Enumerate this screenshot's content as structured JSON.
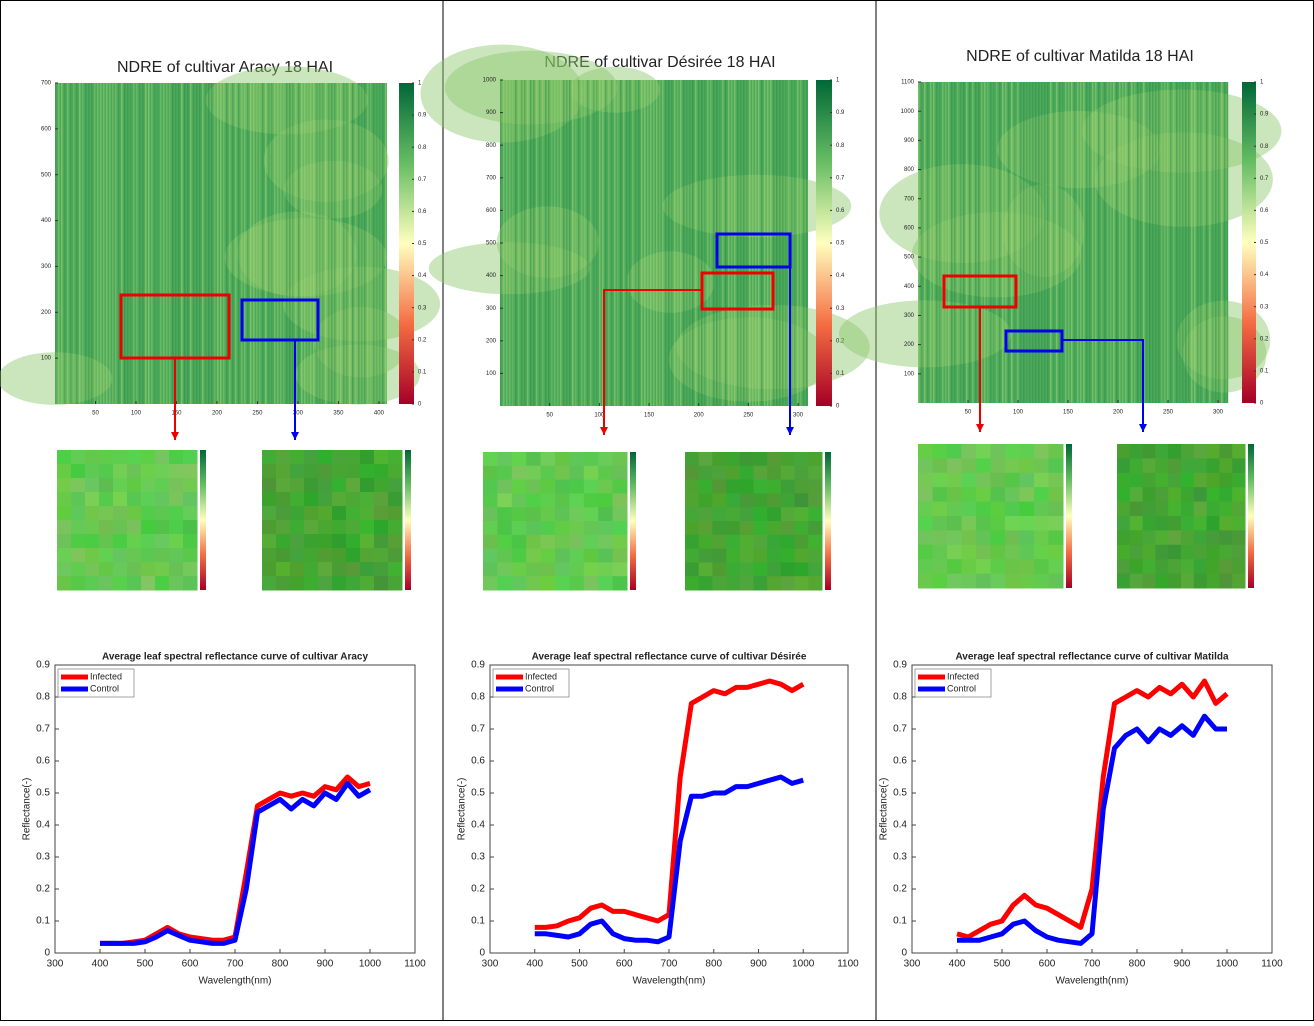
{
  "heatmaps": [
    {
      "title": "NDRE of cultivar Aracy 18 HAI",
      "xlim": [
        0,
        410
      ],
      "ylim": [
        0,
        700
      ],
      "xticks": [
        50,
        100,
        150,
        200,
        250,
        300,
        350,
        400
      ],
      "yticks": [
        100,
        200,
        300,
        400,
        500,
        600,
        700
      ],
      "clim": [
        0,
        1
      ],
      "cticks": [
        0,
        0.1,
        0.2,
        0.3,
        0.4,
        0.5,
        0.6,
        0.7,
        0.8,
        0.9,
        1
      ]
    },
    {
      "title": "NDRE of cultivar Désirée 18 HAI",
      "xlim": [
        0,
        310
      ],
      "ylim": [
        0,
        1000
      ],
      "xticks": [
        50,
        100,
        150,
        200,
        250,
        300
      ],
      "yticks": [
        100,
        200,
        300,
        400,
        500,
        600,
        700,
        800,
        900,
        1000
      ],
      "clim": [
        0,
        1
      ],
      "cticks": [
        0,
        0.1,
        0.2,
        0.3,
        0.4,
        0.5,
        0.6,
        0.7,
        0.8,
        0.9,
        1
      ]
    },
    {
      "title": "NDRE of cultivar Matilda 18 HAI",
      "xlim": [
        0,
        310
      ],
      "ylim": [
        0,
        1100
      ],
      "xticks": [
        50,
        100,
        150,
        200,
        250,
        300
      ],
      "yticks": [
        100,
        200,
        300,
        400,
        500,
        600,
        700,
        800,
        900,
        1000,
        1100
      ],
      "clim": [
        0,
        1
      ],
      "cticks": [
        0,
        0.1,
        0.2,
        0.3,
        0.4,
        0.5,
        0.6,
        0.7,
        0.8,
        0.9,
        1
      ]
    }
  ],
  "chart_data": [
    {
      "type": "line",
      "title": "Average leaf spectral reflectance curve of cultivar Aracy",
      "x_label": "Wavelength(nm)",
      "y_label": "Reflectance(-)",
      "legend": "upper left",
      "x": [
        400,
        425,
        450,
        475,
        500,
        525,
        550,
        575,
        600,
        625,
        650,
        675,
        700,
        725,
        750,
        775,
        800,
        825,
        850,
        875,
        900,
        925,
        950,
        975,
        1000
      ],
      "series": [
        {
          "name": "Infected",
          "color": "#ff0000",
          "values": [
            0.03,
            0.03,
            0.03,
            0.035,
            0.04,
            0.06,
            0.08,
            0.06,
            0.05,
            0.045,
            0.04,
            0.04,
            0.05,
            0.25,
            0.46,
            0.48,
            0.5,
            0.49,
            0.5,
            0.49,
            0.52,
            0.51,
            0.55,
            0.52,
            0.53
          ]
        },
        {
          "name": "Control",
          "color": "#0000ff",
          "values": [
            0.03,
            0.03,
            0.03,
            0.03,
            0.035,
            0.05,
            0.07,
            0.055,
            0.04,
            0.035,
            0.03,
            0.03,
            0.04,
            0.2,
            0.44,
            0.46,
            0.48,
            0.45,
            0.48,
            0.46,
            0.5,
            0.48,
            0.53,
            0.49,
            0.51
          ]
        }
      ],
      "xlim": [
        300,
        1100
      ],
      "xticks": [
        300,
        400,
        500,
        600,
        700,
        800,
        900,
        1000,
        1100
      ],
      "ylim": [
        0,
        0.9
      ],
      "yticks": [
        0,
        0.1,
        0.2,
        0.3,
        0.4,
        0.5,
        0.6,
        0.7,
        0.8,
        0.9
      ]
    },
    {
      "type": "line",
      "title": "Average leaf spectral reflectance curve of cultivar Désirée",
      "x_label": "Wavelength(nm)",
      "y_label": "Reflectance(-)",
      "legend": "upper left",
      "x": [
        400,
        425,
        450,
        475,
        500,
        525,
        550,
        575,
        600,
        625,
        650,
        675,
        700,
        725,
        750,
        775,
        800,
        825,
        850,
        875,
        900,
        925,
        950,
        975,
        1000
      ],
      "series": [
        {
          "name": "Infected",
          "color": "#ff0000",
          "values": [
            0.08,
            0.08,
            0.085,
            0.1,
            0.11,
            0.14,
            0.15,
            0.13,
            0.13,
            0.12,
            0.11,
            0.1,
            0.12,
            0.55,
            0.78,
            0.8,
            0.82,
            0.81,
            0.83,
            0.83,
            0.84,
            0.85,
            0.84,
            0.82,
            0.84
          ]
        },
        {
          "name": "Control",
          "color": "#0000ff",
          "values": [
            0.06,
            0.06,
            0.055,
            0.05,
            0.06,
            0.09,
            0.1,
            0.06,
            0.045,
            0.04,
            0.04,
            0.035,
            0.05,
            0.35,
            0.49,
            0.49,
            0.5,
            0.5,
            0.52,
            0.52,
            0.53,
            0.54,
            0.55,
            0.53,
            0.54
          ]
        }
      ],
      "xlim": [
        300,
        1100
      ],
      "xticks": [
        300,
        400,
        500,
        600,
        700,
        800,
        900,
        1000,
        1100
      ],
      "ylim": [
        0,
        0.9
      ],
      "yticks": [
        0,
        0.1,
        0.2,
        0.3,
        0.4,
        0.5,
        0.6,
        0.7,
        0.8,
        0.9
      ]
    },
    {
      "type": "line",
      "title": "Average leaf spectral reflectance curve of cultivar Matilda",
      "x_label": "Wavelength(nm)",
      "y_label": "Reflectance(-)",
      "legend": "upper left",
      "x": [
        400,
        425,
        450,
        475,
        500,
        525,
        550,
        575,
        600,
        625,
        650,
        675,
        700,
        725,
        750,
        775,
        800,
        825,
        850,
        875,
        900,
        925,
        950,
        975,
        1000
      ],
      "series": [
        {
          "name": "Infected",
          "color": "#ff0000",
          "values": [
            0.06,
            0.05,
            0.07,
            0.09,
            0.1,
            0.15,
            0.18,
            0.15,
            0.14,
            0.12,
            0.1,
            0.08,
            0.2,
            0.55,
            0.78,
            0.8,
            0.82,
            0.8,
            0.83,
            0.81,
            0.84,
            0.8,
            0.85,
            0.78,
            0.81
          ]
        },
        {
          "name": "Control",
          "color": "#0000ff",
          "values": [
            0.04,
            0.04,
            0.04,
            0.05,
            0.06,
            0.09,
            0.1,
            0.07,
            0.05,
            0.04,
            0.035,
            0.03,
            0.06,
            0.45,
            0.64,
            0.68,
            0.7,
            0.66,
            0.7,
            0.68,
            0.71,
            0.68,
            0.74,
            0.7,
            0.7
          ]
        }
      ],
      "xlim": [
        300,
        1100
      ],
      "xticks": [
        300,
        400,
        500,
        600,
        700,
        800,
        900,
        1000,
        1100
      ],
      "ylim": [
        0,
        0.9
      ],
      "yticks": [
        0,
        0.1,
        0.2,
        0.3,
        0.4,
        0.5,
        0.6,
        0.7,
        0.8,
        0.9
      ]
    }
  ]
}
